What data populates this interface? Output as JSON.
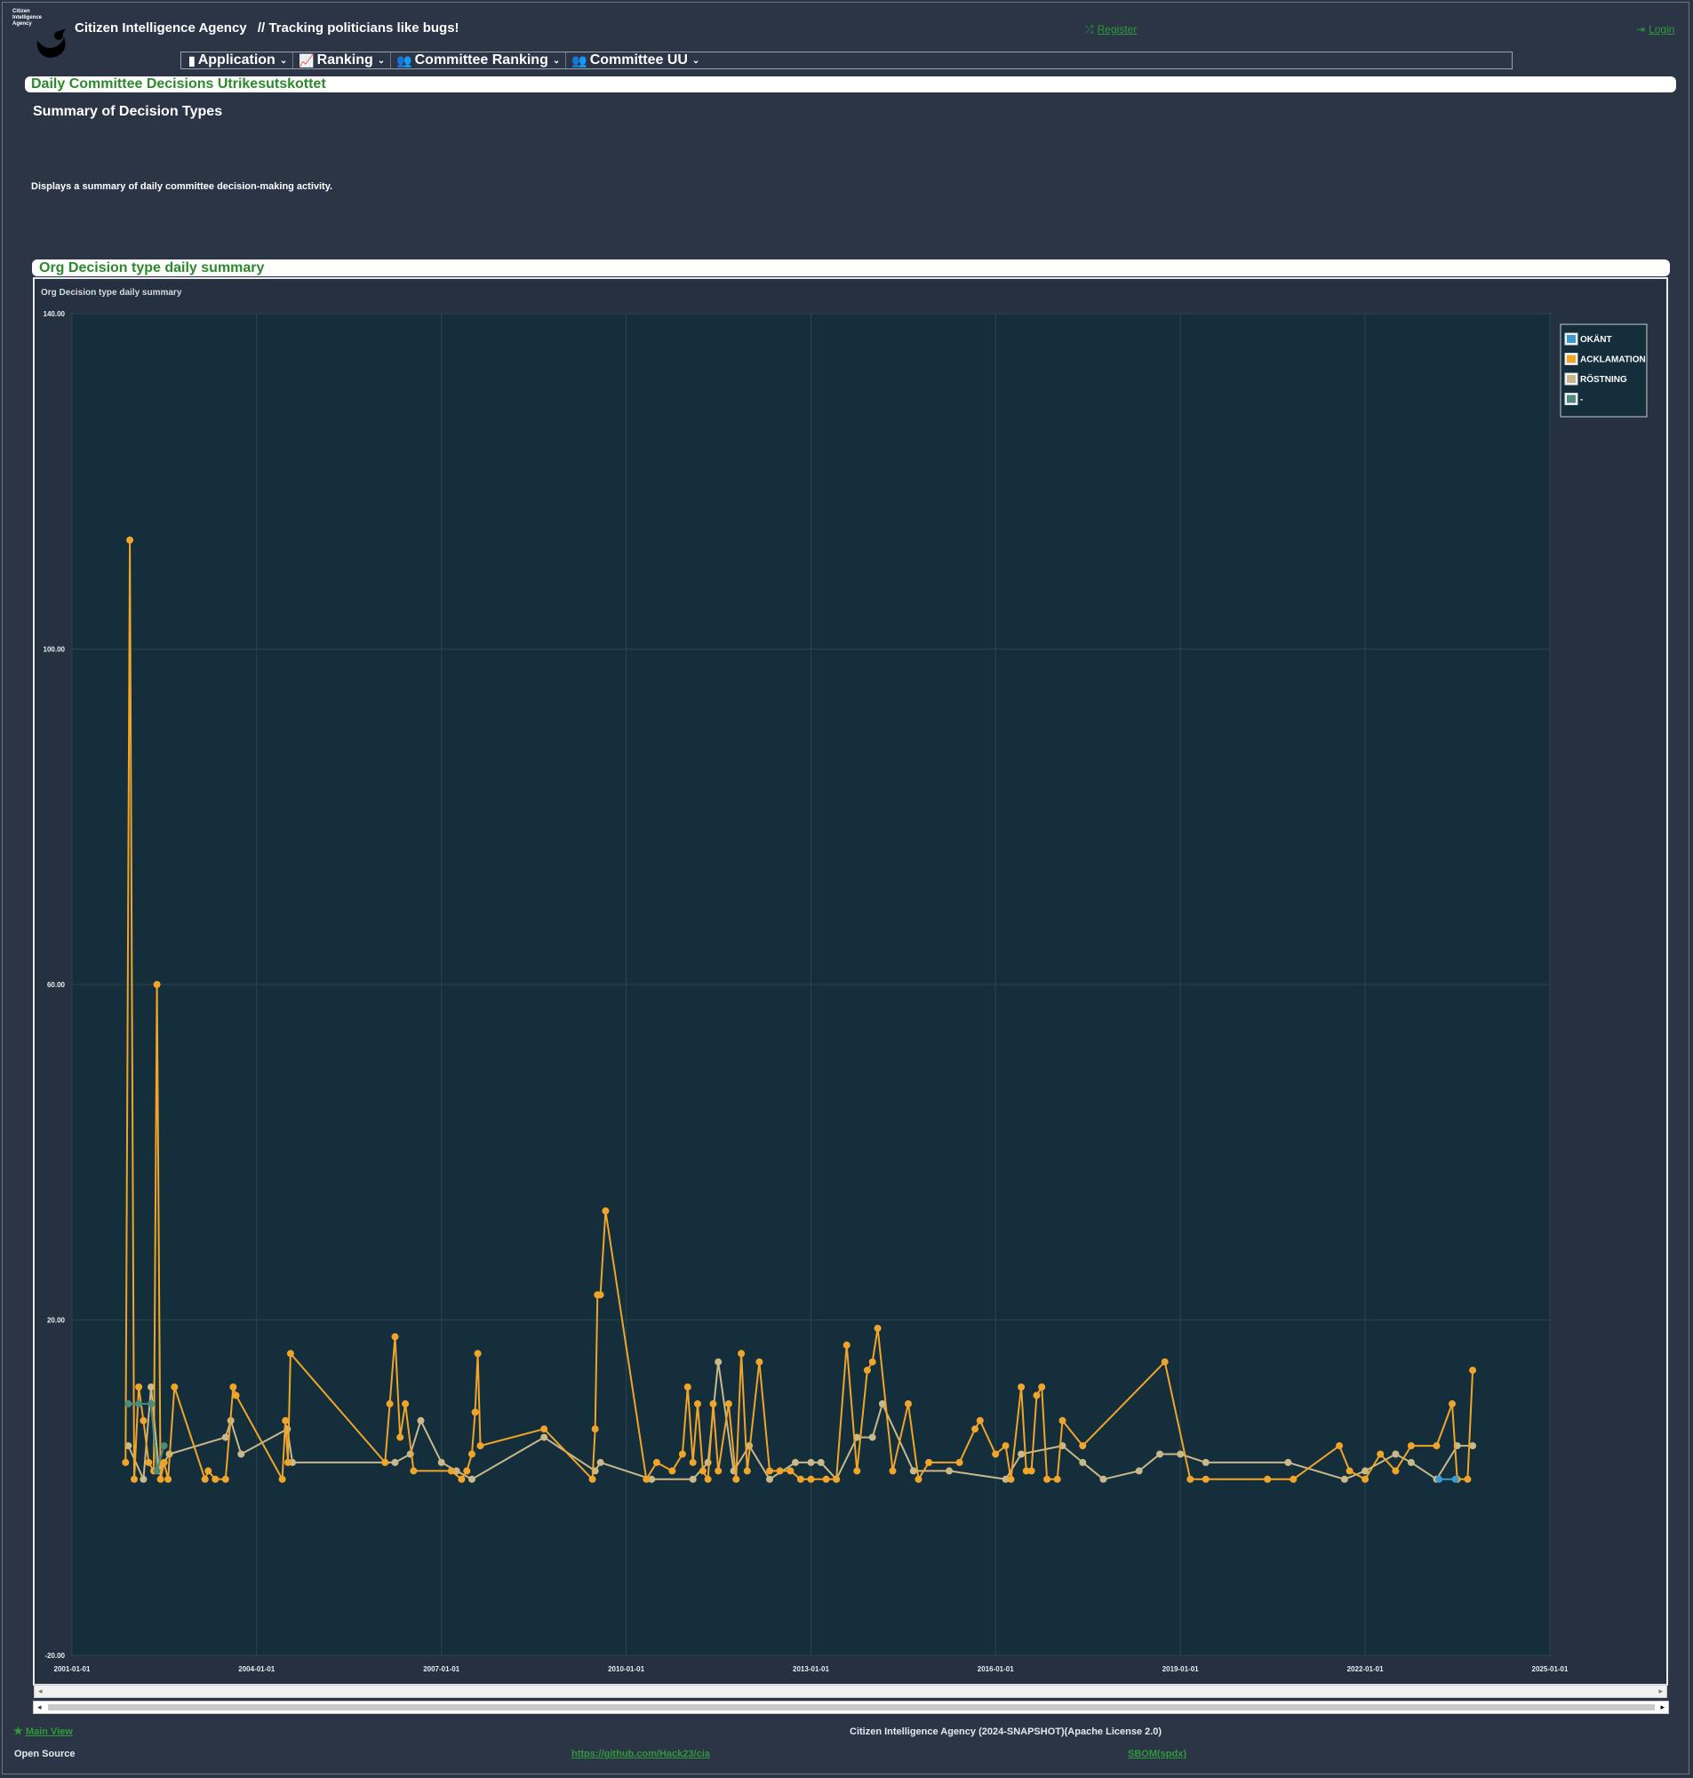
{
  "header": {
    "logo_text": "Citizen Intelligence Agency",
    "app_name": "Citizen Intelligence Agency",
    "tagline": "// Tracking politicians like bugs!",
    "register_label": "Register",
    "login_label": "Login",
    "register_icon": "shuffle-icon",
    "login_icon": "sign-in-icon"
  },
  "menu": [
    {
      "label": "Application",
      "icon": "document-icon"
    },
    {
      "label": "Ranking",
      "icon": "chart-line-icon"
    },
    {
      "label": "Committee Ranking",
      "icon": "users-icon"
    },
    {
      "label": "Committee UU",
      "icon": "users-icon"
    }
  ],
  "page": {
    "title": "Daily Committee Decisions Utrikesutskottet",
    "subheading": "Summary of Decision Types",
    "description": "Displays a summary of daily committee decision-making activity.",
    "chart_section_title": "Org Decision type daily summary",
    "chart_caption": "Org Decision type daily summary"
  },
  "chart_data": {
    "type": "line",
    "title": "Org Decision type daily summary",
    "xlabel": "",
    "ylabel": "",
    "x_tick_labels": [
      "2001-01-01",
      "2004-01-01",
      "2007-01-01",
      "2010-01-01",
      "2013-01-01",
      "2016-01-01",
      "2019-01-01",
      "2022-01-01",
      "2025-01-01"
    ],
    "y_tick_labels": [
      "140.00",
      "100.00",
      "60.00",
      "20.00",
      "-20.00"
    ],
    "xlim": [
      "2001-01-01",
      "2025-01-01"
    ],
    "ylim": [
      -20,
      140
    ],
    "grid": true,
    "legend_position": "top-right",
    "colors": {
      "OKÄNT": "#3a9ad0",
      "ACKLAMATION": "#f0a52a",
      "RÖSTNING": "#c9b98a",
      "-": "#4c8a7a"
    },
    "series": [
      {
        "name": "OKÄNT",
        "points": [
          [
            "2023-03-15",
            1
          ],
          [
            "2023-06-20",
            1
          ]
        ]
      },
      {
        "name": "ACKLAMATION",
        "points": [
          [
            "2001-11-15",
            3
          ],
          [
            "2001-12-10",
            113
          ],
          [
            "2002-01-05",
            1
          ],
          [
            "2002-02-01",
            12
          ],
          [
            "2002-03-01",
            8
          ],
          [
            "2002-04-01",
            3
          ],
          [
            "2002-05-01",
            2
          ],
          [
            "2002-05-20",
            60
          ],
          [
            "2002-06-10",
            1
          ],
          [
            "2002-07-01",
            3
          ],
          [
            "2002-07-25",
            1
          ],
          [
            "2002-09-01",
            12
          ],
          [
            "2003-03-01",
            1
          ],
          [
            "2003-03-20",
            2
          ],
          [
            "2003-05-01",
            1
          ],
          [
            "2003-07-01",
            1
          ],
          [
            "2003-08-15",
            12
          ],
          [
            "2003-09-01",
            11
          ],
          [
            "2004-06-01",
            1
          ],
          [
            "2004-06-20",
            8
          ],
          [
            "2004-07-05",
            3
          ],
          [
            "2004-07-20",
            16
          ],
          [
            "2006-02-01",
            3
          ],
          [
            "2006-03-01",
            10
          ],
          [
            "2006-04-01",
            18
          ],
          [
            "2006-05-01",
            6
          ],
          [
            "2006-06-01",
            10
          ],
          [
            "2006-07-20",
            2
          ],
          [
            "2007-03-01",
            2
          ],
          [
            "2007-05-01",
            1
          ],
          [
            "2007-06-01",
            2
          ],
          [
            "2007-07-01",
            4
          ],
          [
            "2007-07-20",
            9
          ],
          [
            "2007-08-05",
            16
          ],
          [
            "2007-08-20",
            5
          ],
          [
            "2008-09-01",
            7
          ],
          [
            "2009-06-15",
            1
          ],
          [
            "2009-07-01",
            7
          ],
          [
            "2009-07-15",
            23
          ],
          [
            "2009-08-01",
            23
          ],
          [
            "2009-09-01",
            33
          ],
          [
            "2010-05-01",
            1
          ],
          [
            "2010-07-01",
            3
          ],
          [
            "2010-10-01",
            2
          ],
          [
            "2010-12-01",
            4
          ],
          [
            "2011-01-01",
            12
          ],
          [
            "2011-02-01",
            3
          ],
          [
            "2011-03-01",
            10
          ],
          [
            "2011-04-01",
            2
          ],
          [
            "2011-05-01",
            1
          ],
          [
            "2011-06-01",
            10
          ],
          [
            "2011-07-01",
            2
          ],
          [
            "2011-09-01",
            10
          ],
          [
            "2011-10-15",
            1
          ],
          [
            "2011-11-15",
            16
          ],
          [
            "2011-12-20",
            2
          ],
          [
            "2012-03-01",
            15
          ],
          [
            "2012-05-01",
            2
          ],
          [
            "2012-07-01",
            2
          ],
          [
            "2012-09-01",
            2
          ],
          [
            "2012-11-01",
            1
          ],
          [
            "2013-01-01",
            1
          ],
          [
            "2013-04-01",
            1
          ],
          [
            "2013-06-01",
            1
          ],
          [
            "2013-08-01",
            17
          ],
          [
            "2013-10-01",
            2
          ],
          [
            "2013-12-01",
            14
          ],
          [
            "2014-01-01",
            15
          ],
          [
            "2014-02-01",
            19
          ],
          [
            "2014-05-01",
            2
          ],
          [
            "2014-08-01",
            10
          ],
          [
            "2014-10-01",
            1
          ],
          [
            "2014-12-01",
            3
          ],
          [
            "2015-06-01",
            3
          ],
          [
            "2015-09-01",
            7
          ],
          [
            "2015-10-01",
            8
          ],
          [
            "2016-01-01",
            4
          ],
          [
            "2016-03-01",
            5
          ],
          [
            "2016-04-01",
            1
          ],
          [
            "2016-06-01",
            12
          ],
          [
            "2016-07-01",
            2
          ],
          [
            "2016-08-01",
            2
          ],
          [
            "2016-09-01",
            11
          ],
          [
            "2016-10-01",
            12
          ],
          [
            "2016-11-01",
            1
          ],
          [
            "2017-01-01",
            1
          ],
          [
            "2017-02-01",
            8
          ],
          [
            "2017-06-01",
            5
          ],
          [
            "2018-10-01",
            15
          ],
          [
            "2019-03-01",
            1
          ],
          [
            "2019-06-01",
            1
          ],
          [
            "2020-06-01",
            1
          ],
          [
            "2020-11-01",
            1
          ],
          [
            "2021-08-01",
            5
          ],
          [
            "2021-10-01",
            2
          ],
          [
            "2022-01-01",
            1
          ],
          [
            "2022-04-01",
            4
          ],
          [
            "2022-07-01",
            2
          ],
          [
            "2022-10-01",
            5
          ],
          [
            "2023-03-01",
            5
          ],
          [
            "2023-06-01",
            10
          ],
          [
            "2023-07-01",
            1
          ],
          [
            "2023-09-01",
            1
          ],
          [
            "2023-10-01",
            14
          ]
        ]
      },
      {
        "name": "RÖSTNING",
        "points": [
          [
            "2001-12-01",
            5
          ],
          [
            "2002-03-01",
            1
          ],
          [
            "2002-04-15",
            12
          ],
          [
            "2002-06-01",
            2
          ],
          [
            "2002-08-01",
            4
          ],
          [
            "2003-07-01",
            6
          ],
          [
            "2003-08-01",
            8
          ],
          [
            "2003-10-01",
            4
          ],
          [
            "2004-07-01",
            7
          ],
          [
            "2004-08-01",
            3
          ],
          [
            "2006-04-01",
            3
          ],
          [
            "2006-07-01",
            4
          ],
          [
            "2006-09-01",
            8
          ],
          [
            "2007-01-01",
            3
          ],
          [
            "2007-04-01",
            2
          ],
          [
            "2007-07-01",
            1
          ],
          [
            "2008-09-01",
            6
          ],
          [
            "2009-07-01",
            2
          ],
          [
            "2009-08-01",
            3
          ],
          [
            "2010-06-01",
            1
          ],
          [
            "2011-02-01",
            1
          ],
          [
            "2011-05-01",
            3
          ],
          [
            "2011-07-01",
            15
          ],
          [
            "2011-10-01",
            2
          ],
          [
            "2012-01-01",
            5
          ],
          [
            "2012-05-01",
            1
          ],
          [
            "2012-10-01",
            3
          ],
          [
            "2013-01-01",
            3
          ],
          [
            "2013-03-01",
            3
          ],
          [
            "2013-06-01",
            1
          ],
          [
            "2013-10-01",
            6
          ],
          [
            "2014-01-01",
            6
          ],
          [
            "2014-03-01",
            10
          ],
          [
            "2014-09-01",
            2
          ],
          [
            "2015-04-01",
            2
          ],
          [
            "2016-03-01",
            1
          ],
          [
            "2016-06-01",
            4
          ],
          [
            "2017-02-01",
            5
          ],
          [
            "2017-06-01",
            3
          ],
          [
            "2017-10-01",
            1
          ],
          [
            "2018-05-01",
            2
          ],
          [
            "2018-09-01",
            4
          ],
          [
            "2019-01-01",
            4
          ],
          [
            "2019-06-01",
            3
          ],
          [
            "2020-10-01",
            3
          ],
          [
            "2021-09-01",
            1
          ],
          [
            "2022-01-01",
            2
          ],
          [
            "2022-07-01",
            4
          ],
          [
            "2022-10-01",
            3
          ],
          [
            "2023-03-01",
            1
          ],
          [
            "2023-07-01",
            5
          ],
          [
            "2023-10-01",
            5
          ]
        ]
      },
      {
        "name": "-",
        "points": [
          [
            "2001-12-01",
            10
          ],
          [
            "2002-02-01",
            10
          ],
          [
            "2002-04-15",
            10
          ],
          [
            "2002-05-20",
            2
          ],
          [
            "2002-07-01",
            5
          ]
        ]
      }
    ]
  },
  "footer": {
    "main_view_label": "Main View",
    "main_view_icon": "star-icon",
    "copyright": "Citizen Intelligence Agency (2024-SNAPSHOT)(Apache License 2.0)",
    "open_source_label": "Open Source",
    "github_link": "https://github.com/Hack23/cia",
    "sbom_link": "SBOM(spdx)"
  }
}
